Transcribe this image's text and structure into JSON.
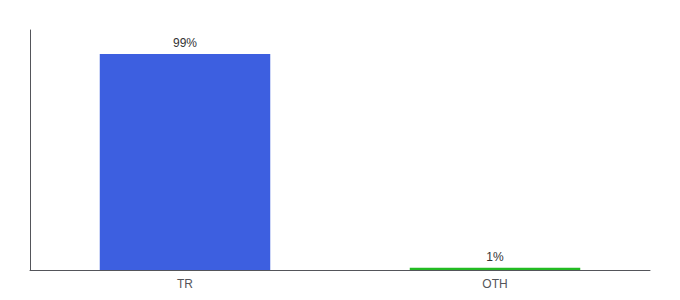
{
  "chart_data": {
    "type": "bar",
    "categories": [
      "TR",
      "OTH"
    ],
    "values": [
      99,
      1
    ],
    "colors": [
      "#3d5fe0",
      "#22bb22"
    ],
    "value_labels": [
      "99%",
      "1%"
    ],
    "data_labels": true,
    "ylim": [
      0,
      110
    ],
    "yticks": [],
    "tick_labels": "x",
    "grid": false
  }
}
